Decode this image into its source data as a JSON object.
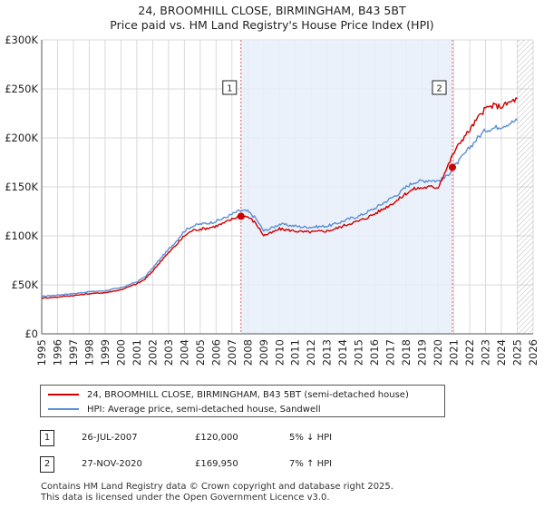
{
  "chart_data": {
    "type": "line",
    "title": "24, BROOMHILL CLOSE, BIRMINGHAM, B43 5BT",
    "subtitle": "Price paid vs. HM Land Registry's House Price Index (HPI)",
    "xlim": [
      1995,
      2026
    ],
    "ylim": [
      0,
      300000
    ],
    "x_ticks": [
      "1995",
      "1996",
      "1997",
      "1998",
      "1999",
      "2000",
      "2001",
      "2002",
      "2003",
      "2004",
      "2005",
      "2006",
      "2007",
      "2008",
      "2009",
      "2010",
      "2011",
      "2012",
      "2013",
      "2014",
      "2015",
      "2016",
      "2017",
      "2018",
      "2019",
      "2020",
      "2021",
      "2022",
      "2023",
      "2024",
      "2025",
      "2026"
    ],
    "y_ticks": [
      {
        "value": 0,
        "label": "£0"
      },
      {
        "value": 50000,
        "label": "£50K"
      },
      {
        "value": 100000,
        "label": "£100K"
      },
      {
        "value": 150000,
        "label": "£150K"
      },
      {
        "value": 200000,
        "label": "£200K"
      },
      {
        "value": 250000,
        "label": "£250K"
      },
      {
        "value": 300000,
        "label": "£300K"
      }
    ],
    "shaded_region": [
      2007.57,
      2020.91
    ],
    "future_hatch_start": 2025.0,
    "colors": {
      "property": "#cc0000",
      "hpi": "#5b8fd6",
      "shade": "#e8eef9",
      "sale_line": "#e06060"
    },
    "series": [
      {
        "name": "HPI: Average price, semi-detached house, Sandwell",
        "x": [
          1995.0,
          1995.5,
          1996.0,
          1996.5,
          1997.0,
          1997.5,
          1998.0,
          1998.5,
          1999.0,
          1999.5,
          2000.0,
          2000.5,
          2001.0,
          2001.5,
          2002.0,
          2002.5,
          2003.0,
          2003.5,
          2004.0,
          2004.5,
          2005.0,
          2005.5,
          2006.0,
          2006.5,
          2007.0,
          2007.5,
          2008.0,
          2008.5,
          2009.0,
          2009.5,
          2010.0,
          2010.5,
          2011.0,
          2011.5,
          2012.0,
          2012.5,
          2013.0,
          2013.5,
          2014.0,
          2014.5,
          2015.0,
          2015.5,
          2016.0,
          2016.5,
          2017.0,
          2017.5,
          2018.0,
          2018.5,
          2019.0,
          2019.5,
          2020.0,
          2020.5,
          2021.0,
          2021.5,
          2022.0,
          2022.5,
          2023.0,
          2023.5,
          2024.0,
          2024.5,
          2025.0
        ],
        "values": [
          38000,
          39000,
          39500,
          40500,
          41000,
          42000,
          43000,
          43500,
          44000,
          45500,
          47000,
          50000,
          53000,
          58000,
          67000,
          77000,
          86000,
          95000,
          105000,
          110000,
          112000,
          113000,
          115000,
          118000,
          122000,
          126000,
          125000,
          118000,
          105000,
          108000,
          112000,
          111000,
          110000,
          109000,
          109000,
          109500,
          110000,
          112000,
          115000,
          118000,
          120000,
          124000,
          128000,
          133000,
          138000,
          143000,
          150000,
          155000,
          156000,
          157000,
          156000,
          160000,
          170000,
          180000,
          190000,
          200000,
          208000,
          210000,
          212000,
          215000,
          218000
        ]
      },
      {
        "name": "24, BROOMHILL CLOSE, BIRMINGHAM, B43 5BT (semi-detached house)",
        "x": [
          1995.0,
          1995.5,
          1996.0,
          1996.5,
          1997.0,
          1997.5,
          1998.0,
          1998.5,
          1999.0,
          1999.5,
          2000.0,
          2000.5,
          2001.0,
          2001.5,
          2002.0,
          2002.5,
          2003.0,
          2003.5,
          2004.0,
          2004.5,
          2005.0,
          2005.5,
          2006.0,
          2006.5,
          2007.0,
          2007.5,
          2008.0,
          2008.5,
          2009.0,
          2009.5,
          2010.0,
          2010.5,
          2011.0,
          2011.5,
          2012.0,
          2012.5,
          2013.0,
          2013.5,
          2014.0,
          2014.5,
          2015.0,
          2015.5,
          2016.0,
          2016.5,
          2017.0,
          2017.5,
          2018.0,
          2018.5,
          2019.0,
          2019.5,
          2020.0,
          2020.5,
          2021.0,
          2021.5,
          2022.0,
          2022.5,
          2023.0,
          2023.5,
          2024.0,
          2024.5,
          2025.0
        ],
        "values": [
          36500,
          37000,
          37500,
          38500,
          39000,
          40000,
          41000,
          41500,
          42000,
          43500,
          45000,
          48000,
          51000,
          55500,
          64000,
          74000,
          82500,
          91000,
          100000,
          105500,
          107000,
          108000,
          110000,
          113000,
          117000,
          120500,
          119500,
          113000,
          100500,
          103000,
          107000,
          106000,
          105000,
          104000,
          104000,
          104500,
          105000,
          107000,
          110000,
          113000,
          115000,
          118500,
          122500,
          127000,
          132000,
          137000,
          143500,
          148000,
          149000,
          150000,
          149500,
          167000,
          185000,
          198000,
          208000,
          220000,
          230000,
          233000,
          232000,
          236000,
          240000
        ]
      }
    ],
    "markers": [
      {
        "label": "1",
        "x": 2007.57,
        "value": 120000
      },
      {
        "label": "2",
        "x": 2020.91,
        "value": 169950
      }
    ],
    "legend": [
      "24, BROOMHILL CLOSE, BIRMINGHAM, B43 5BT (semi-detached house)",
      "HPI: Average price, semi-detached house, Sandwell"
    ]
  },
  "sales": [
    {
      "id": "1",
      "date": "26-JUL-2007",
      "price": "£120,000",
      "hpi": "5% ↓ HPI"
    },
    {
      "id": "2",
      "date": "27-NOV-2020",
      "price": "£169,950",
      "hpi": "7% ↑ HPI"
    }
  ],
  "footer": {
    "line1": "Contains HM Land Registry data © Crown copyright and database right 2025.",
    "line2": "This data is licensed under the Open Government Licence v3.0."
  }
}
